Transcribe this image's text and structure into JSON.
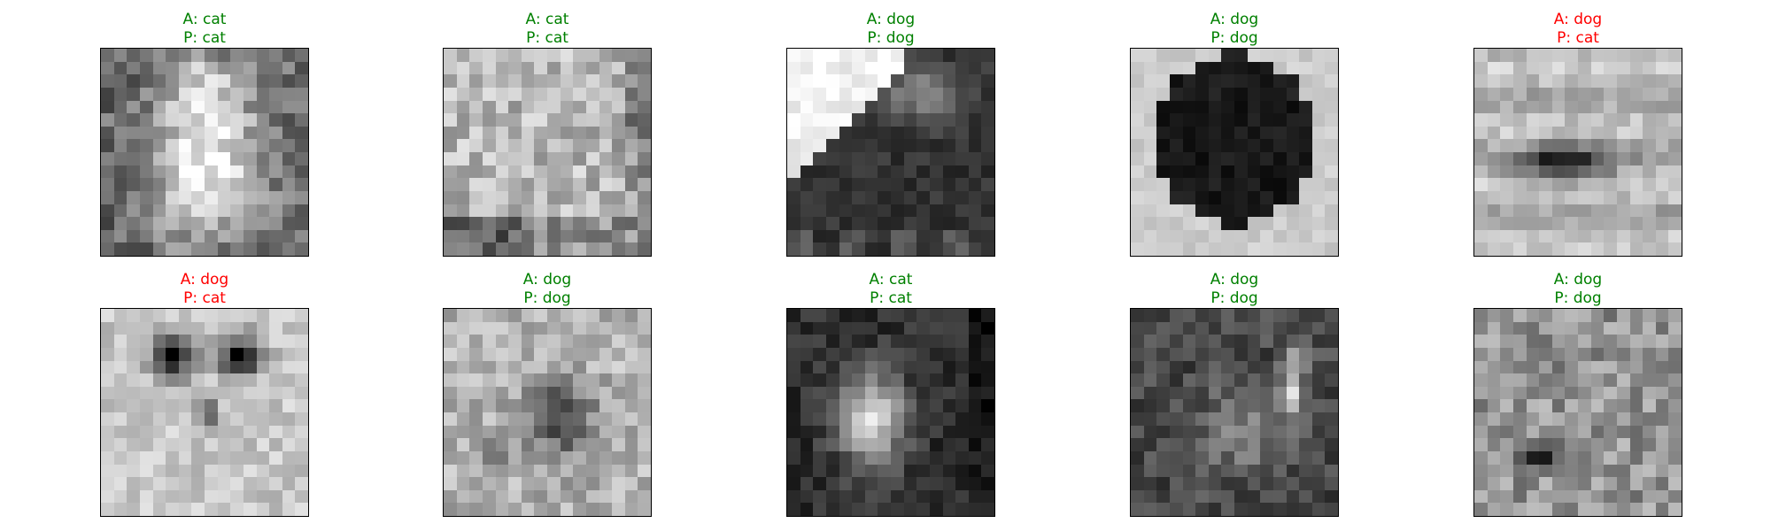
{
  "colors": {
    "correct": "#008000",
    "incorrect": "#ff0000"
  },
  "panels": [
    {
      "actual": "A: cat",
      "predicted": "P: cat",
      "correct": true
    },
    {
      "actual": "A: cat",
      "predicted": "P: cat",
      "correct": true
    },
    {
      "actual": "A: dog",
      "predicted": "P: dog",
      "correct": true
    },
    {
      "actual": "A: dog",
      "predicted": "P: dog",
      "correct": true
    },
    {
      "actual": "A: dog",
      "predicted": "P: cat",
      "correct": false
    },
    {
      "actual": "A: dog",
      "predicted": "P: cat",
      "correct": false
    },
    {
      "actual": "A: dog",
      "predicted": "P: dog",
      "correct": true
    },
    {
      "actual": "A: cat",
      "predicted": "P: cat",
      "correct": true
    },
    {
      "actual": "A: dog",
      "predicted": "P: dog",
      "correct": true
    },
    {
      "actual": "A: dog",
      "predicted": "P: dog",
      "correct": true
    }
  ]
}
